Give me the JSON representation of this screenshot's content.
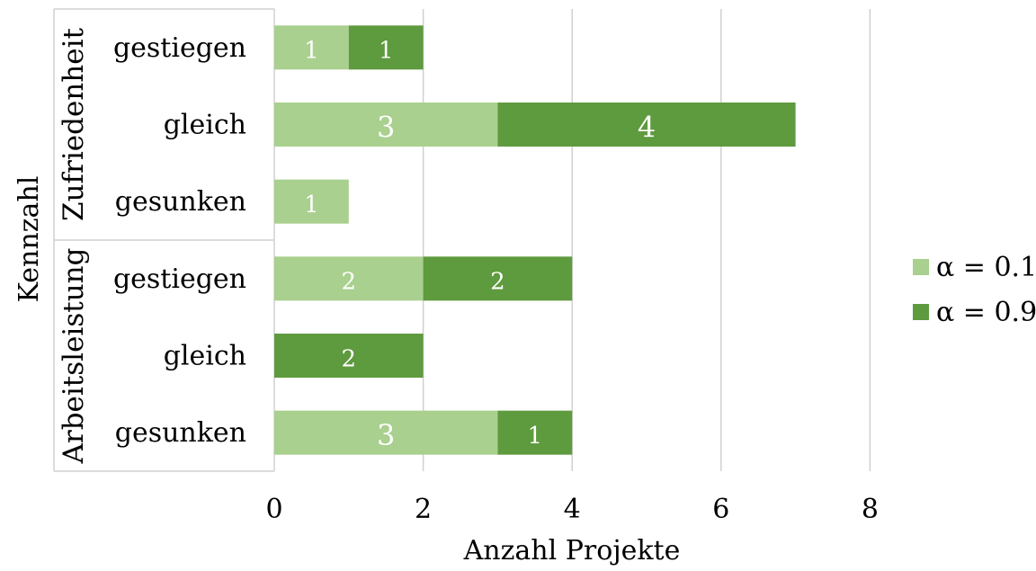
{
  "chart_data": {
    "type": "bar",
    "orientation": "horizontal",
    "stacked": true,
    "xlabel": "Anzahl Projekte",
    "ylabel": "Kennzahl",
    "xlim": [
      0,
      8
    ],
    "xticks": [
      0,
      2,
      4,
      6,
      8
    ],
    "grid": true,
    "legend_position": "right",
    "groups": [
      {
        "name": "Zufriedenheit",
        "categories": [
          "gestiegen",
          "gleich",
          "gesunken"
        ]
      },
      {
        "name": "Arbeitsleistung",
        "categories": [
          "gestiegen",
          "gleich",
          "gesunken"
        ]
      }
    ],
    "series": [
      {
        "name": "α = 0.1",
        "color": "#a9d08e",
        "values": [
          1,
          3,
          1,
          2,
          0,
          3
        ]
      },
      {
        "name": "α = 0.9",
        "color": "#5e9a3e",
        "values": [
          1,
          4,
          0,
          2,
          2,
          1
        ]
      }
    ]
  }
}
